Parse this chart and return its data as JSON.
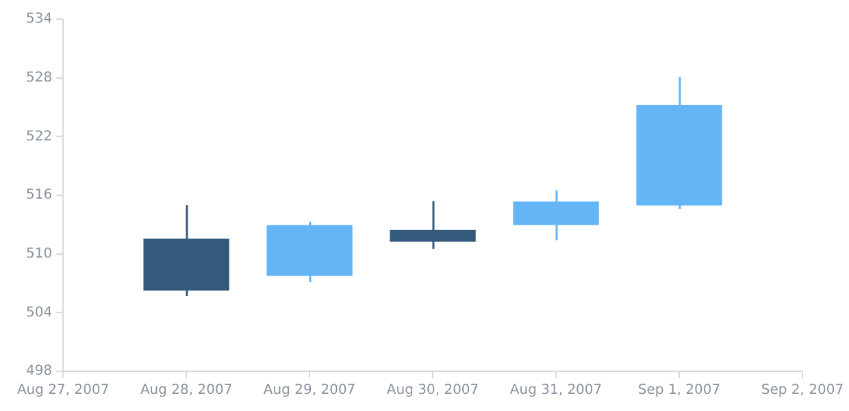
{
  "chart_data": {
    "type": "candlestick",
    "x": [
      "2007-08-28",
      "2007-08-29",
      "2007-08-30",
      "2007-08-31",
      "2007-09-01"
    ],
    "ohlc": [
      [
        511.5,
        515.0,
        505.7,
        506.3
      ],
      [
        507.8,
        513.3,
        507.1,
        512.9
      ],
      [
        512.4,
        515.4,
        510.5,
        511.3
      ],
      [
        513.0,
        516.5,
        511.4,
        515.3
      ],
      [
        515.0,
        528.1,
        514.6,
        525.2
      ]
    ],
    "colors": [
      "#335a7a",
      "#64b5f6",
      "#335a7a",
      "#64b5f6",
      "#64b5f6"
    ],
    "xlim": [
      "2007-08-27",
      "2007-09-02"
    ],
    "xticks": [
      {
        "value": "2007-08-27",
        "label": "Aug 27, 2007"
      },
      {
        "value": "2007-08-28",
        "label": "Aug 28, 2007"
      },
      {
        "value": "2007-08-29",
        "label": "Aug 29, 2007"
      },
      {
        "value": "2007-08-30",
        "label": "Aug 30, 2007"
      },
      {
        "value": "2007-08-31",
        "label": "Aug 31, 2007"
      },
      {
        "value": "2007-09-01",
        "label": "Sep 1, 2007"
      },
      {
        "value": "2007-09-02",
        "label": "Sep 2, 2007"
      }
    ],
    "ylim": [
      498,
      534
    ],
    "yticks": [
      498,
      504,
      510,
      516,
      522,
      528,
      534
    ],
    "grid": false,
    "legend": false
  }
}
